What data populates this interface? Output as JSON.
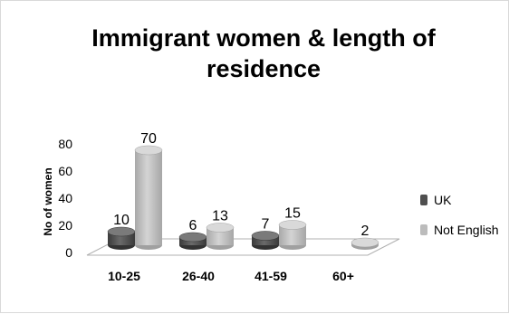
{
  "chart_data": {
    "type": "bar",
    "title_line1": "Immigrant women & length of",
    "title_line2": "residence",
    "ylabel": "No of women",
    "xlabel": "",
    "ylim": [
      0,
      80
    ],
    "yticks": [
      "0",
      "20",
      "40",
      "60",
      "80"
    ],
    "categories": [
      "10-25",
      "26-40",
      "41-59",
      "60+"
    ],
    "series": [
      {
        "name": "UK",
        "values": [
          10,
          6,
          7,
          null
        ],
        "color": "#4f4f4f"
      },
      {
        "name": "Not English",
        "values": [
          70,
          13,
          15,
          2
        ],
        "color": "#bcbcbc"
      }
    ],
    "legend_position": "right",
    "grid": false
  }
}
